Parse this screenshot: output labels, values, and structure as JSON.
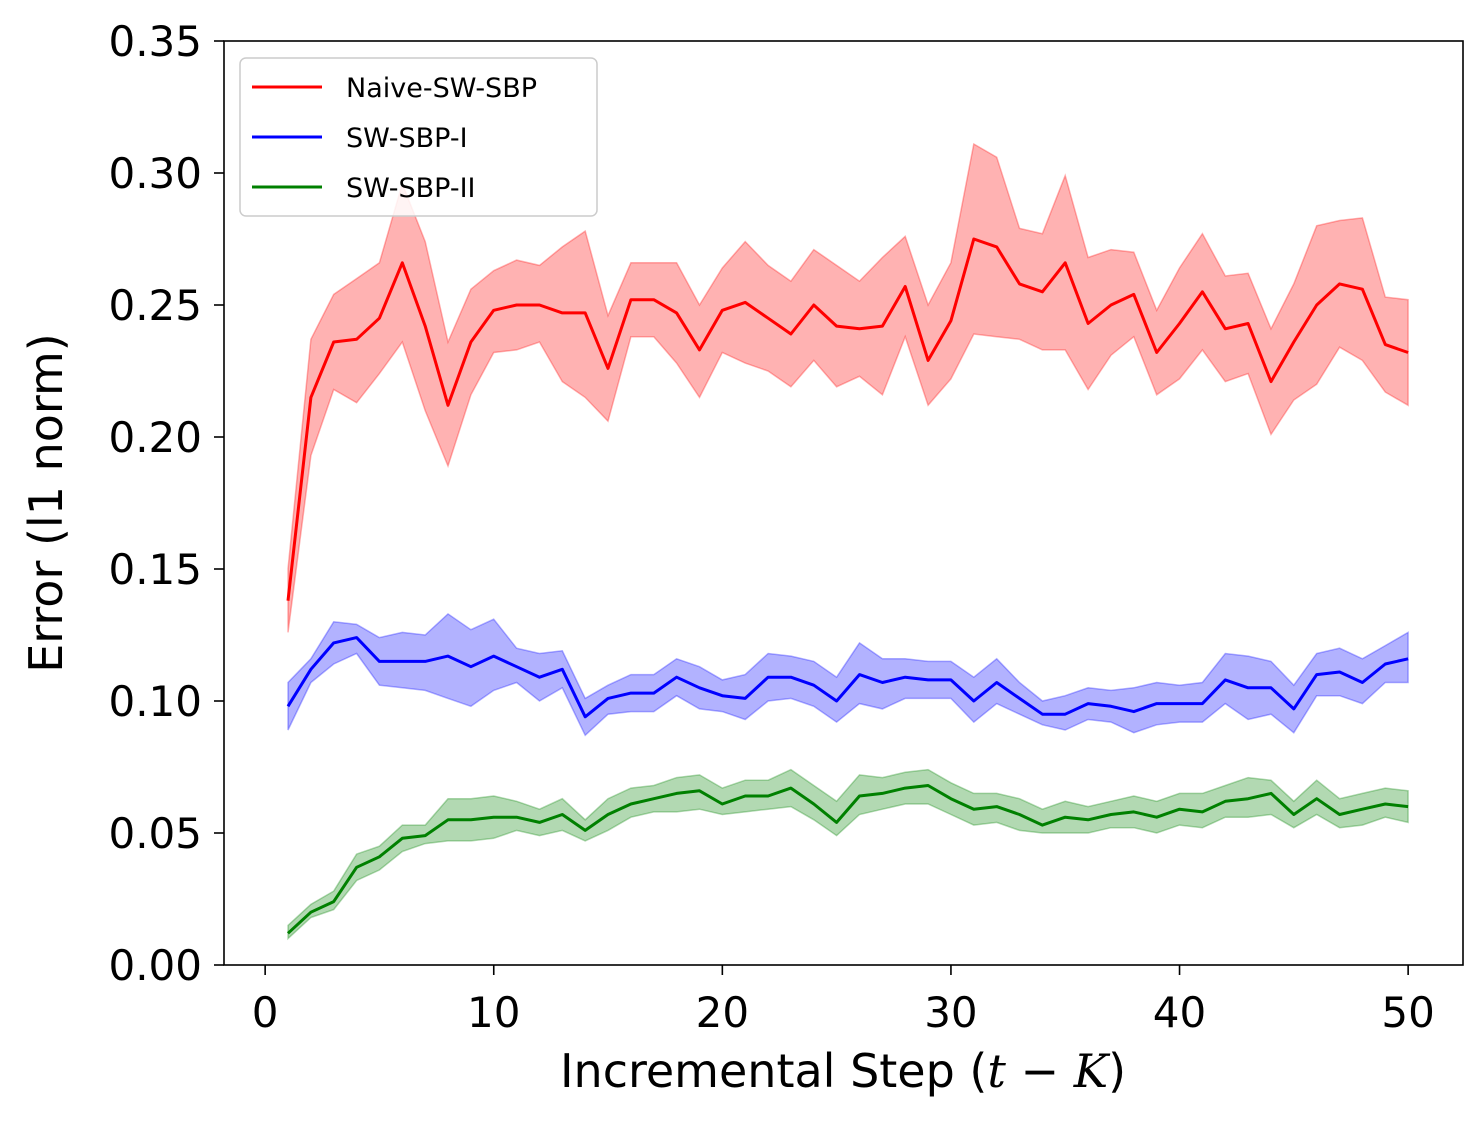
{
  "chart_data": {
    "type": "line",
    "xlabel_text": "Incremental Step (",
    "xlabel_math_t": "t",
    "xlabel_math_minus": " − ",
    "xlabel_math_k": "K",
    "xlabel_close": ")",
    "ylabel": "Error (l1 norm)",
    "xlim": [
      -1.8,
      52.4
    ],
    "ylim": [
      0,
      0.35
    ],
    "xticks": [
      0,
      10,
      20,
      30,
      40,
      50
    ],
    "xtick_labels": [
      "0",
      "10",
      "20",
      "30",
      "40",
      "50"
    ],
    "yticks": [
      0,
      0.05,
      0.1,
      0.15,
      0.2,
      0.25,
      0.3,
      0.35
    ],
    "ytick_labels": [
      "0.00",
      "0.05",
      "0.10",
      "0.15",
      "0.20",
      "0.25",
      "0.30",
      "0.35"
    ],
    "legend_position": "upper-left",
    "grid": false,
    "x": [
      1,
      2,
      3,
      4,
      5,
      6,
      7,
      8,
      9,
      10,
      11,
      12,
      13,
      14,
      15,
      16,
      17,
      18,
      19,
      20,
      21,
      22,
      23,
      24,
      25,
      26,
      27,
      28,
      29,
      30,
      31,
      32,
      33,
      34,
      35,
      36,
      37,
      38,
      39,
      40,
      41,
      42,
      43,
      44,
      45,
      46,
      47,
      48,
      49,
      50
    ],
    "series": [
      {
        "name": "Naive-SW-SBP",
        "color": "#ff0000",
        "band_color": "#ff0000",
        "values": [
          0.138,
          0.215,
          0.236,
          0.237,
          0.245,
          0.266,
          0.242,
          0.212,
          0.236,
          0.248,
          0.25,
          0.25,
          0.247,
          0.247,
          0.226,
          0.252,
          0.252,
          0.247,
          0.233,
          0.248,
          0.251,
          0.245,
          0.239,
          0.25,
          0.242,
          0.241,
          0.242,
          0.257,
          0.229,
          0.244,
          0.275,
          0.272,
          0.258,
          0.255,
          0.266,
          0.243,
          0.25,
          0.254,
          0.232,
          0.243,
          0.255,
          0.241,
          0.243,
          0.221,
          0.236,
          0.25,
          0.258,
          0.256,
          0.235,
          0.232
        ],
        "upper": [
          0.15,
          0.237,
          0.254,
          0.26,
          0.266,
          0.296,
          0.274,
          0.236,
          0.256,
          0.263,
          0.267,
          0.265,
          0.272,
          0.278,
          0.246,
          0.266,
          0.266,
          0.266,
          0.25,
          0.264,
          0.274,
          0.265,
          0.259,
          0.271,
          0.265,
          0.259,
          0.268,
          0.276,
          0.25,
          0.266,
          0.311,
          0.306,
          0.279,
          0.277,
          0.299,
          0.268,
          0.271,
          0.27,
          0.248,
          0.264,
          0.277,
          0.261,
          0.262,
          0.241,
          0.258,
          0.28,
          0.282,
          0.283,
          0.253,
          0.252
        ],
        "lower": [
          0.126,
          0.193,
          0.218,
          0.213,
          0.224,
          0.236,
          0.21,
          0.189,
          0.216,
          0.232,
          0.233,
          0.236,
          0.221,
          0.215,
          0.206,
          0.238,
          0.238,
          0.228,
          0.215,
          0.232,
          0.228,
          0.225,
          0.219,
          0.229,
          0.219,
          0.223,
          0.216,
          0.238,
          0.212,
          0.222,
          0.239,
          0.238,
          0.237,
          0.233,
          0.233,
          0.218,
          0.231,
          0.238,
          0.216,
          0.222,
          0.233,
          0.221,
          0.224,
          0.201,
          0.214,
          0.22,
          0.234,
          0.229,
          0.217,
          0.212
        ]
      },
      {
        "name": "SW-SBP-I",
        "color": "#0000ff",
        "band_color": "#0000ff",
        "values": [
          0.098,
          0.112,
          0.122,
          0.124,
          0.115,
          0.115,
          0.115,
          0.117,
          0.113,
          0.117,
          0.113,
          0.109,
          0.112,
          0.094,
          0.101,
          0.103,
          0.103,
          0.109,
          0.105,
          0.102,
          0.101,
          0.109,
          0.109,
          0.106,
          0.1,
          0.11,
          0.107,
          0.109,
          0.108,
          0.108,
          0.1,
          0.107,
          0.101,
          0.095,
          0.095,
          0.099,
          0.098,
          0.096,
          0.099,
          0.099,
          0.099,
          0.108,
          0.105,
          0.105,
          0.097,
          0.11,
          0.111,
          0.107,
          0.114,
          0.116
        ],
        "upper": [
          0.107,
          0.116,
          0.13,
          0.129,
          0.124,
          0.126,
          0.125,
          0.133,
          0.127,
          0.131,
          0.12,
          0.118,
          0.119,
          0.101,
          0.106,
          0.11,
          0.11,
          0.116,
          0.113,
          0.108,
          0.11,
          0.118,
          0.117,
          0.115,
          0.109,
          0.122,
          0.116,
          0.116,
          0.115,
          0.115,
          0.109,
          0.116,
          0.107,
          0.1,
          0.102,
          0.105,
          0.104,
          0.105,
          0.107,
          0.106,
          0.107,
          0.118,
          0.117,
          0.115,
          0.106,
          0.118,
          0.12,
          0.116,
          0.121,
          0.126
        ],
        "lower": [
          0.089,
          0.107,
          0.114,
          0.118,
          0.106,
          0.105,
          0.104,
          0.101,
          0.098,
          0.104,
          0.107,
          0.1,
          0.105,
          0.087,
          0.095,
          0.096,
          0.096,
          0.102,
          0.097,
          0.096,
          0.093,
          0.1,
          0.101,
          0.098,
          0.092,
          0.099,
          0.097,
          0.101,
          0.101,
          0.101,
          0.092,
          0.099,
          0.095,
          0.091,
          0.089,
          0.093,
          0.092,
          0.088,
          0.091,
          0.092,
          0.092,
          0.099,
          0.093,
          0.095,
          0.088,
          0.102,
          0.102,
          0.099,
          0.107,
          0.107
        ]
      },
      {
        "name": "SW-SBP-II",
        "color": "#008000",
        "band_color": "#008000",
        "values": [
          0.012,
          0.02,
          0.024,
          0.037,
          0.041,
          0.048,
          0.049,
          0.055,
          0.055,
          0.056,
          0.056,
          0.054,
          0.057,
          0.051,
          0.057,
          0.061,
          0.063,
          0.065,
          0.066,
          0.061,
          0.064,
          0.064,
          0.067,
          0.061,
          0.054,
          0.064,
          0.065,
          0.067,
          0.068,
          0.063,
          0.059,
          0.06,
          0.057,
          0.053,
          0.056,
          0.055,
          0.057,
          0.058,
          0.056,
          0.059,
          0.058,
          0.062,
          0.063,
          0.065,
          0.057,
          0.063,
          0.057,
          0.059,
          0.061,
          0.06
        ],
        "upper": [
          0.015,
          0.023,
          0.028,
          0.042,
          0.045,
          0.053,
          0.053,
          0.063,
          0.063,
          0.064,
          0.062,
          0.059,
          0.063,
          0.055,
          0.063,
          0.067,
          0.068,
          0.071,
          0.072,
          0.067,
          0.07,
          0.07,
          0.074,
          0.068,
          0.062,
          0.072,
          0.071,
          0.073,
          0.074,
          0.069,
          0.065,
          0.065,
          0.063,
          0.059,
          0.062,
          0.06,
          0.062,
          0.064,
          0.062,
          0.065,
          0.065,
          0.068,
          0.071,
          0.07,
          0.062,
          0.07,
          0.063,
          0.065,
          0.067,
          0.066
        ],
        "lower": [
          0.01,
          0.018,
          0.021,
          0.032,
          0.036,
          0.043,
          0.046,
          0.047,
          0.047,
          0.048,
          0.051,
          0.049,
          0.051,
          0.047,
          0.051,
          0.056,
          0.058,
          0.058,
          0.059,
          0.057,
          0.058,
          0.059,
          0.06,
          0.055,
          0.049,
          0.057,
          0.059,
          0.061,
          0.061,
          0.057,
          0.053,
          0.054,
          0.051,
          0.05,
          0.05,
          0.05,
          0.052,
          0.052,
          0.05,
          0.053,
          0.052,
          0.056,
          0.056,
          0.057,
          0.052,
          0.057,
          0.052,
          0.053,
          0.056,
          0.054
        ]
      }
    ]
  }
}
